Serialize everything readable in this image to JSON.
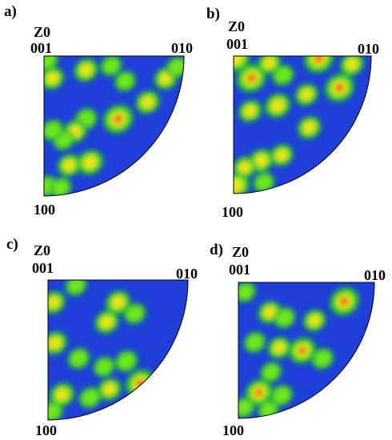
{
  "colors": {
    "background": "#1f3fd8",
    "low": "#12b43a",
    "mid": "#6ee61a",
    "high": "#f2e21a",
    "peak": "#e8241c",
    "outline": "#000000"
  },
  "panels": [
    {
      "letter": "a)",
      "zlabel": "Z0",
      "top_label": "001",
      "right_label": "010",
      "bottom_label": "100",
      "hotspots": [
        {
          "u": 0.02,
          "v": 0.97,
          "level": 0.45
        },
        {
          "u": 0.06,
          "v": 0.84,
          "level": 0.5
        },
        {
          "u": 0.3,
          "v": 0.9,
          "level": 0.55
        },
        {
          "u": 0.48,
          "v": 0.93,
          "level": 0.35
        },
        {
          "u": 0.58,
          "v": 0.82,
          "level": 0.35
        },
        {
          "u": 0.87,
          "v": 0.84,
          "level": 0.5
        },
        {
          "u": 0.95,
          "v": 0.92,
          "level": 0.4
        },
        {
          "u": 0.74,
          "v": 0.67,
          "level": 0.55
        },
        {
          "u": 0.53,
          "v": 0.55,
          "level": 1.0
        },
        {
          "u": 0.3,
          "v": 0.55,
          "level": 0.45
        },
        {
          "u": 0.22,
          "v": 0.46,
          "level": 0.55
        },
        {
          "u": 0.14,
          "v": 0.4,
          "level": 0.35
        },
        {
          "u": 0.06,
          "v": 0.47,
          "level": 0.4
        },
        {
          "u": 0.33,
          "v": 0.24,
          "level": 0.7
        },
        {
          "u": 0.18,
          "v": 0.22,
          "level": 0.5
        },
        {
          "u": 0.02,
          "v": 0.07,
          "level": 0.4
        },
        {
          "u": 0.12,
          "v": 0.06,
          "level": 0.35
        }
      ]
    },
    {
      "letter": "b)",
      "zlabel": "Z0",
      "top_label": "001",
      "right_label": "010",
      "bottom_label": "100",
      "hotspots": [
        {
          "u": 0.02,
          "v": 0.98,
          "level": 0.75
        },
        {
          "u": 0.13,
          "v": 0.84,
          "level": 1.0
        },
        {
          "u": 0.26,
          "v": 0.95,
          "level": 0.5
        },
        {
          "u": 0.36,
          "v": 0.86,
          "level": 0.4
        },
        {
          "u": 0.62,
          "v": 0.98,
          "level": 1.0
        },
        {
          "u": 0.86,
          "v": 0.94,
          "level": 0.55
        },
        {
          "u": 0.77,
          "v": 0.77,
          "level": 1.0
        },
        {
          "u": 0.53,
          "v": 0.72,
          "level": 0.5
        },
        {
          "u": 0.32,
          "v": 0.64,
          "level": 0.7
        },
        {
          "u": 0.12,
          "v": 0.6,
          "level": 0.5
        },
        {
          "u": 0.55,
          "v": 0.48,
          "level": 0.55
        },
        {
          "u": 0.35,
          "v": 0.28,
          "level": 0.5
        },
        {
          "u": 0.2,
          "v": 0.24,
          "level": 0.6
        },
        {
          "u": 0.08,
          "v": 0.19,
          "level": 0.5
        },
        {
          "u": 0.02,
          "v": 0.06,
          "level": 0.75
        },
        {
          "u": 0.22,
          "v": 0.08,
          "level": 0.4
        }
      ]
    },
    {
      "letter": "c)",
      "zlabel": "Z0",
      "top_label": "001",
      "right_label": "010",
      "bottom_label": "100",
      "hotspots": [
        {
          "u": 0.04,
          "v": 0.84,
          "level": 0.5
        },
        {
          "u": 0.2,
          "v": 0.96,
          "level": 0.35
        },
        {
          "u": 0.5,
          "v": 0.84,
          "level": 0.6
        },
        {
          "u": 0.42,
          "v": 0.7,
          "level": 0.55
        },
        {
          "u": 0.62,
          "v": 0.76,
          "level": 0.4
        },
        {
          "u": 0.05,
          "v": 0.55,
          "level": 0.55
        },
        {
          "u": 0.22,
          "v": 0.44,
          "level": 0.4
        },
        {
          "u": 0.56,
          "v": 0.42,
          "level": 0.45
        },
        {
          "u": 0.4,
          "v": 0.38,
          "level": 0.35
        },
        {
          "u": 0.66,
          "v": 0.26,
          "level": 0.95
        },
        {
          "u": 0.44,
          "v": 0.22,
          "level": 0.5
        },
        {
          "u": 0.3,
          "v": 0.16,
          "level": 0.4
        },
        {
          "u": 0.1,
          "v": 0.18,
          "level": 0.6
        },
        {
          "u": 0.03,
          "v": 0.06,
          "level": 0.4
        }
      ]
    },
    {
      "letter": "d)",
      "zlabel": "Z0",
      "top_label": "001",
      "right_label": "010",
      "bottom_label": "100",
      "hotspots": [
        {
          "u": 0.05,
          "v": 0.93,
          "level": 0.4
        },
        {
          "u": 0.23,
          "v": 0.78,
          "level": 0.55
        },
        {
          "u": 0.34,
          "v": 0.74,
          "level": 0.45
        },
        {
          "u": 0.56,
          "v": 0.72,
          "level": 0.5
        },
        {
          "u": 0.78,
          "v": 0.86,
          "level": 1.0
        },
        {
          "u": 0.12,
          "v": 0.56,
          "level": 0.45
        },
        {
          "u": 0.3,
          "v": 0.52,
          "level": 0.5
        },
        {
          "u": 0.47,
          "v": 0.5,
          "level": 0.85
        },
        {
          "u": 0.62,
          "v": 0.44,
          "level": 0.45
        },
        {
          "u": 0.24,
          "v": 0.34,
          "level": 0.4
        },
        {
          "u": 0.15,
          "v": 0.19,
          "level": 0.85
        },
        {
          "u": 0.32,
          "v": 0.17,
          "level": 0.45
        },
        {
          "u": 0.04,
          "v": 0.08,
          "level": 0.4
        },
        {
          "u": 0.22,
          "v": 0.06,
          "level": 0.35
        }
      ]
    }
  ]
}
